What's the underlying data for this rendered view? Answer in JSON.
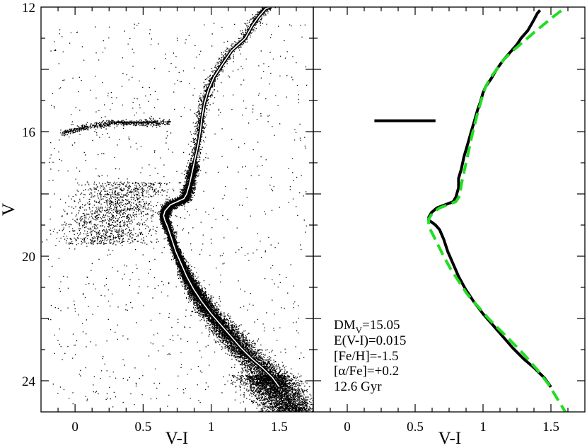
{
  "chart_data": [
    {
      "type": "scatter",
      "panel": "left",
      "title": "",
      "xlabel": "V-I",
      "ylabel": "V",
      "xlim": [
        -0.25,
        1.75
      ],
      "ylim": [
        25,
        12
      ],
      "y_inverted": true,
      "x_ticks": [
        "0",
        "0.5",
        "1",
        "1.5"
      ],
      "x_tick_values": [
        0,
        0.5,
        1,
        1.5
      ],
      "y_ticks": [
        "12",
        "16",
        "20",
        "24"
      ],
      "y_tick_values": [
        12,
        16,
        20,
        24
      ],
      "grid": false,
      "point_color": "#000000",
      "series": [
        {
          "kind": "isochrone",
          "style": "black line with white core",
          "x": [
            1.5,
            1.45,
            1.38,
            1.3,
            1.22,
            1.15,
            1.08,
            1.0,
            0.93,
            0.87,
            0.82,
            0.78,
            0.74,
            0.71,
            0.68,
            0.66,
            0.65,
            0.66,
            0.7,
            0.75,
            0.8,
            0.82,
            0.84,
            0.86,
            0.88,
            0.9,
            0.92,
            0.93,
            0.95,
            0.98,
            1.02,
            1.08,
            1.15,
            1.25,
            1.3,
            1.35,
            1.4,
            1.43
          ],
          "y": [
            24.2,
            23.9,
            23.6,
            23.3,
            22.95,
            22.6,
            22.25,
            21.85,
            21.45,
            21.05,
            20.65,
            20.25,
            19.85,
            19.45,
            19.05,
            18.85,
            18.7,
            18.55,
            18.35,
            18.25,
            18.15,
            18.0,
            17.7,
            17.3,
            16.9,
            16.5,
            16.0,
            15.6,
            15.1,
            14.65,
            14.25,
            13.85,
            13.4,
            13.0,
            12.6,
            12.3,
            12.05,
            12.0
          ]
        },
        {
          "kind": "horizontal-branch",
          "style": "short black segment",
          "x": [
            0.3,
            0.6
          ],
          "y": [
            15.7,
            15.7
          ]
        }
      ]
    },
    {
      "type": "line",
      "panel": "right",
      "title": "",
      "xlabel": "V-I",
      "ylabel": "",
      "xlim": [
        -0.25,
        1.75
      ],
      "ylim": [
        25,
        12
      ],
      "y_inverted": true,
      "x_ticks": [
        "0",
        "0.5",
        "1",
        "1.5"
      ],
      "x_tick_values": [
        0,
        0.5,
        1,
        1.5
      ],
      "grid": false,
      "colors": {
        "observed": "#000000",
        "model": "#22dd22"
      },
      "series": [
        {
          "kind": "fiducial",
          "style": "solid black",
          "x": [
            1.5,
            1.45,
            1.38,
            1.3,
            1.22,
            1.15,
            1.08,
            1.0,
            0.93,
            0.87,
            0.82,
            0.78,
            0.74,
            0.71,
            0.68,
            0.65,
            0.62,
            0.6,
            0.6,
            0.62,
            0.66,
            0.72,
            0.78,
            0.8,
            0.82,
            0.82,
            0.84,
            0.86,
            0.88,
            0.9,
            0.92,
            0.94,
            0.96,
            0.98,
            1.0,
            1.02,
            1.06,
            1.1,
            1.15,
            1.2,
            1.25,
            1.28,
            1.33,
            1.37,
            1.4,
            1.42
          ],
          "y": [
            24.2,
            23.9,
            23.6,
            23.3,
            22.95,
            22.6,
            22.25,
            21.85,
            21.45,
            21.05,
            20.65,
            20.25,
            19.85,
            19.45,
            19.15,
            19.0,
            18.9,
            18.85,
            18.75,
            18.6,
            18.45,
            18.35,
            18.25,
            18.1,
            17.8,
            17.5,
            17.2,
            16.8,
            16.5,
            16.2,
            15.9,
            15.6,
            15.3,
            15.05,
            14.75,
            14.55,
            14.3,
            14.0,
            13.7,
            13.45,
            13.2,
            13.0,
            12.75,
            12.45,
            12.2,
            12.1
          ]
        },
        {
          "kind": "model-isochrone",
          "style": "dashed green",
          "x": [
            1.62,
            1.55,
            1.48,
            1.4,
            1.3,
            1.2,
            1.12,
            1.04,
            0.96,
            0.88,
            0.82,
            0.76,
            0.71,
            0.67,
            0.63,
            0.6,
            0.6,
            0.63,
            0.68,
            0.74,
            0.8,
            0.83,
            0.84,
            0.86,
            0.88,
            0.9,
            0.92,
            0.94,
            0.96,
            0.98,
            1.0,
            1.02,
            1.05,
            1.1,
            1.15,
            1.22,
            1.3,
            1.38,
            1.45,
            1.52,
            1.58
          ],
          "y": [
            25.1,
            24.6,
            24.1,
            23.65,
            23.15,
            22.7,
            22.35,
            22.0,
            21.6,
            21.2,
            20.8,
            20.4,
            20.0,
            19.65,
            19.3,
            19.05,
            18.8,
            18.6,
            18.45,
            18.35,
            18.25,
            18.05,
            17.7,
            17.3,
            16.9,
            16.5,
            16.1,
            15.75,
            15.4,
            15.1,
            14.8,
            14.55,
            14.3,
            14.0,
            13.7,
            13.4,
            13.1,
            12.8,
            12.55,
            12.3,
            12.1
          ]
        },
        {
          "kind": "horizontal-branch",
          "style": "thick black segment",
          "x": [
            0.2,
            0.65
          ],
          "y": [
            15.65,
            15.65
          ]
        }
      ],
      "annotations": {
        "dm_main": "DM",
        "dm_sub": "V",
        "dm_value": "=15.05",
        "ext": "E(V-I)=0.015",
        "feh": "[Fe/H]=-1.5",
        "alpha": "[α/Fe]=+0.2",
        "age": "12.6 Gyr"
      }
    }
  ]
}
